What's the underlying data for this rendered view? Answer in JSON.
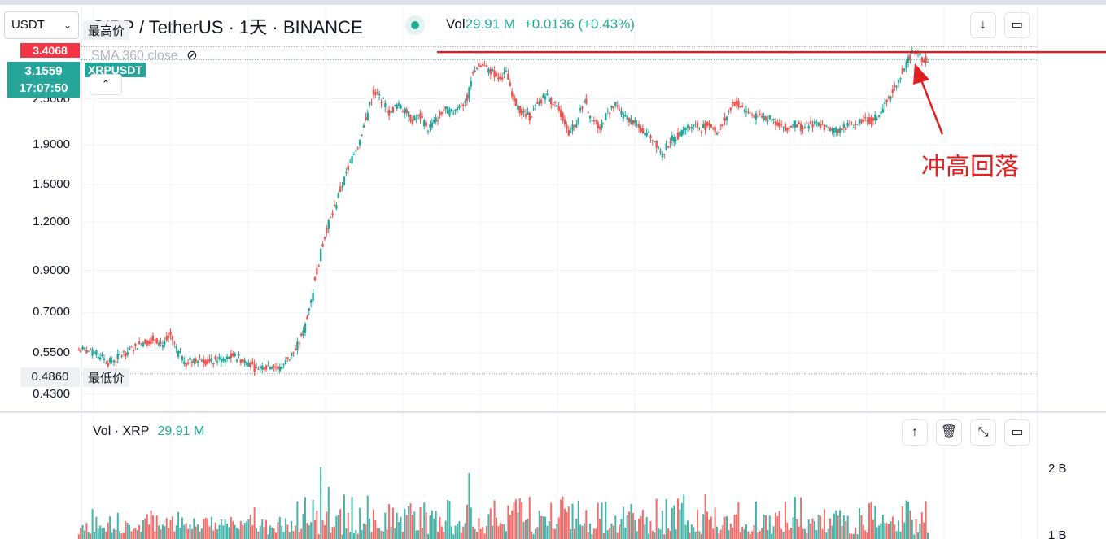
{
  "toolbar": {
    "currency_select": "USDT",
    "symbol_title": "XRP / TetherUS · 1天 · BINANCE",
    "vol_label": "Vol",
    "vol_value": "29.91 M",
    "change": "+0.0136 (+0.43%)"
  },
  "price_pane": {
    "high_badge": "3.4068",
    "high_label": "最高价",
    "last_price": "3.1559",
    "countdown": "17:07:50",
    "symbol_tag": "XRPUSDT",
    "low_badge": "0.4860",
    "low_label": "最低价",
    "sma_label": "SMA 360 close",
    "annotation": "冲高回落"
  },
  "volume_pane": {
    "title_prefix": "Vol · XRP",
    "title_value": "29.91 M"
  },
  "icons": {
    "chevron": "chevron-down-icon",
    "close": "close-icon",
    "eye_off": "eye-off-icon",
    "caret_up": "caret-up-icon",
    "download": "download-icon",
    "fullscreen": "fullscreen-icon",
    "arrow_up": "arrow-up-icon",
    "trash": "trash-icon",
    "collapse": "collapse-icon"
  },
  "colors": {
    "up": "#26a69a",
    "down": "#ef5350",
    "annotation": "#e02020",
    "high_badge": "#f23645"
  },
  "chart_data": [
    {
      "type": "candlestick",
      "symbol": "XRPUSDT",
      "interval": "1天",
      "scale": "log",
      "y_ticks": [
        2.5,
        1.9,
        1.5,
        1.2,
        0.9,
        0.7,
        0.55,
        0.43
      ],
      "ylim": [
        0.4,
        3.45
      ],
      "highest": 3.4068,
      "lowest": 0.486,
      "last": 3.1559,
      "resistance_line": 3.3,
      "close_series": [
        0.56,
        0.55,
        0.54,
        0.52,
        0.53,
        0.55,
        0.56,
        0.58,
        0.59,
        0.6,
        0.58,
        0.61,
        0.55,
        0.52,
        0.53,
        0.53,
        0.52,
        0.53,
        0.53,
        0.54,
        0.53,
        0.52,
        0.5,
        0.51,
        0.51,
        0.5,
        0.53,
        0.56,
        0.62,
        0.75,
        0.95,
        1.15,
        1.3,
        1.5,
        1.7,
        1.9,
        2.2,
        2.6,
        2.5,
        2.3,
        2.4,
        2.35,
        2.2,
        2.25,
        2.1,
        2.2,
        2.35,
        2.3,
        2.4,
        2.5,
        3.0,
        3.05,
        2.95,
        2.85,
        2.9,
        2.5,
        2.3,
        2.25,
        2.4,
        2.55,
        2.45,
        2.3,
        2.05,
        2.15,
        2.5,
        2.2,
        2.1,
        2.3,
        2.4,
        2.25,
        2.2,
        2.1,
        2.05,
        1.95,
        1.8,
        1.95,
        2.0,
        2.1,
        2.15,
        2.1,
        2.15,
        2.05,
        2.2,
        2.45,
        2.4,
        2.3,
        2.25,
        2.25,
        2.2,
        2.15,
        2.1,
        2.15,
        2.1,
        2.15,
        2.15,
        2.1,
        2.05,
        2.1,
        2.15,
        2.15,
        2.2,
        2.2,
        2.3,
        2.5,
        2.75,
        3.0,
        3.3,
        3.2,
        3.16
      ]
    },
    {
      "type": "bar",
      "series_name": "Vol · XRP",
      "y_ticks_label": [
        "2 B",
        "1 B"
      ]
    }
  ]
}
